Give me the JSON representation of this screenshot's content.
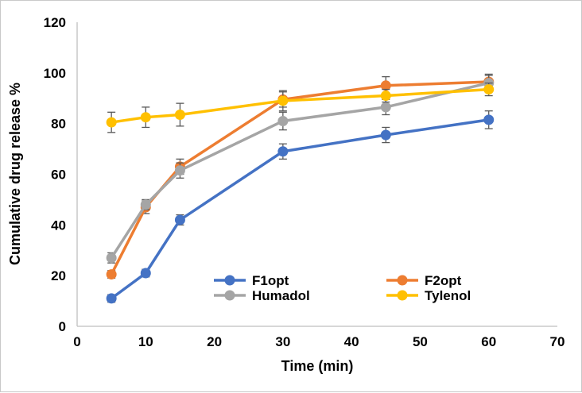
{
  "chart_data": {
    "type": "line",
    "title": "",
    "xlabel": "Time (min)",
    "ylabel": "Cumulative drug release %",
    "x": [
      5,
      10,
      15,
      30,
      45,
      60
    ],
    "series": [
      {
        "name": "F1opt",
        "color": "#4472C4",
        "values": [
          11,
          21,
          42,
          69,
          75.5,
          81.5
        ],
        "errors": [
          1.5,
          1.5,
          2,
          3,
          3,
          3.5
        ]
      },
      {
        "name": "F2opt",
        "color": "#ED7D31",
        "values": [
          20.5,
          47,
          63,
          89.5,
          95,
          96.5
        ],
        "errors": [
          1.5,
          2.5,
          3,
          3,
          3.5,
          3
        ]
      },
      {
        "name": "Humadol",
        "color": "#A5A5A5",
        "values": [
          27,
          48,
          61.5,
          81,
          86.5,
          96
        ],
        "errors": [
          2,
          2,
          3,
          3.5,
          3,
          3
        ]
      },
      {
        "name": "Tylenol",
        "color": "#FFC000",
        "values": [
          80.5,
          82.5,
          83.5,
          89,
          91,
          93.5
        ],
        "errors": [
          4,
          4,
          4.5,
          4,
          2.5,
          2.5
        ]
      }
    ],
    "xlim": [
      0,
      70
    ],
    "ylim": [
      0,
      120
    ],
    "xticks": [
      0,
      10,
      20,
      30,
      40,
      50,
      60,
      70
    ],
    "yticks": [
      0,
      20,
      40,
      60,
      80,
      100,
      120
    ],
    "grid": false,
    "error_bars": true,
    "legend_position": "inside-bottom-center",
    "legend_rows": [
      [
        "F1opt",
        "F2opt"
      ],
      [
        "Humadol",
        "Tylenol"
      ]
    ]
  },
  "colors": {
    "axis_line": "#BFBFBF",
    "error_bar": "#595959",
    "text": "#000000",
    "frame_border": "#C9C9C9",
    "background": "#FFFFFF"
  }
}
